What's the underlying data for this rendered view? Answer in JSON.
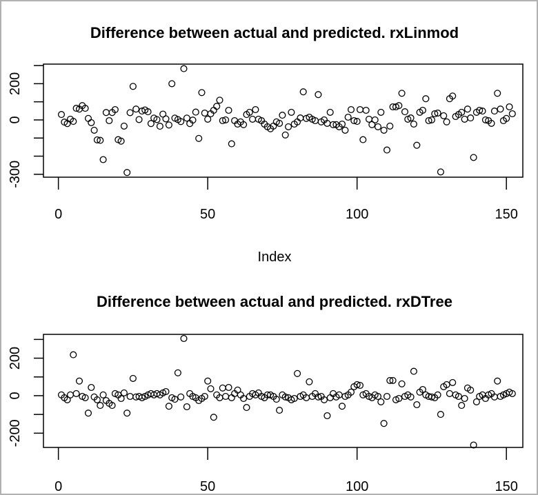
{
  "window": {
    "background": "#ffffff",
    "border_color": "#b1b1b1",
    "axis_color": "#000000",
    "point_color": "#000000"
  },
  "chart_data": [
    {
      "type": "scatter",
      "title": "Difference between actual and predicted. rxLinmod",
      "xlabel": "Index",
      "ylabel": "",
      "marker": "open-circle",
      "grid": false,
      "legend": "none",
      "x_is_index": true,
      "xlim": [
        -5,
        155.5
      ],
      "ylim": [
        -316,
        308
      ],
      "xticks": [
        0,
        50,
        100,
        150
      ],
      "xtick_labels": [
        "0",
        "50",
        "100",
        "150"
      ],
      "yticks": [
        300,
        200,
        100,
        0,
        -100,
        -200,
        -300
      ],
      "ytick_labels": [
        "",
        "200",
        "",
        "0",
        "",
        "",
        "-300"
      ],
      "values": [
        30,
        -12,
        -20,
        4,
        -8,
        64,
        60,
        79,
        64,
        8,
        -15,
        -57,
        -110,
        -113,
        -219,
        41,
        -4,
        41,
        57,
        -109,
        -117,
        -34,
        -290,
        40,
        185,
        60,
        2,
        49,
        55,
        45,
        -20,
        10,
        2,
        -35,
        32,
        6,
        -28,
        200,
        10,
        2,
        -9,
        283,
        10,
        -20,
        -1,
        43,
        -102,
        151,
        38,
        4,
        34,
        53,
        75,
        109,
        -4,
        0,
        53,
        -132,
        -4,
        -23,
        -11,
        -26,
        30,
        42,
        4,
        57,
        4,
        -4,
        -23,
        -38,
        -49,
        -34,
        -11,
        -19,
        26,
        -83,
        -38,
        42,
        -23,
        -11,
        11,
        155,
        8,
        15,
        4,
        -4,
        140,
        -11,
        0,
        -19,
        42,
        -26,
        -26,
        -38,
        -23,
        -57,
        15,
        57,
        -4,
        -8,
        57,
        -109,
        53,
        4,
        -26,
        0,
        -38,
        42,
        -57,
        -166,
        -34,
        72,
        72,
        79,
        147,
        45,
        4,
        11,
        -23,
        -140,
        42,
        53,
        117,
        -4,
        0,
        34,
        38,
        -287,
        23,
        -11,
        117,
        132,
        19,
        30,
        42,
        4,
        60,
        11,
        -207,
        42,
        53,
        49,
        0,
        -4,
        -19,
        49,
        147,
        60,
        -4,
        8,
        72,
        34
      ]
    },
    {
      "type": "scatter",
      "title": "Difference between actual and predicted. rxDTree",
      "xlabel": "",
      "ylabel": "",
      "marker": "open-circle",
      "grid": false,
      "legend": "none",
      "x_is_index": true,
      "xlim": [
        -5,
        155.5
      ],
      "ylim": [
        -276,
        327
      ],
      "xticks": [
        0,
        50,
        100,
        150
      ],
      "xtick_labels": [
        "0",
        "50",
        "100",
        "150"
      ],
      "yticks": [
        300,
        200,
        100,
        0,
        -100,
        -200
      ],
      "ytick_labels": [
        "",
        "200",
        "",
        "0",
        "",
        "-200"
      ],
      "values": [
        4,
        -11,
        -22,
        4,
        218,
        11,
        78,
        -4,
        -11,
        -93,
        44,
        -7,
        -22,
        -52,
        4,
        -26,
        -41,
        -52,
        11,
        4,
        -15,
        15,
        -93,
        -4,
        92,
        -7,
        -4,
        -11,
        -4,
        4,
        11,
        4,
        11,
        4,
        15,
        22,
        -56,
        -11,
        -19,
        122,
        -7,
        305,
        -59,
        11,
        -4,
        -11,
        -26,
        -15,
        -4,
        78,
        37,
        -115,
        4,
        -11,
        41,
        -4,
        44,
        -11,
        11,
        30,
        4,
        -15,
        -63,
        -4,
        11,
        4,
        15,
        -4,
        -11,
        4,
        4,
        -4,
        -19,
        -78,
        4,
        -7,
        -11,
        -22,
        -15,
        118,
        -4,
        4,
        -11,
        74,
        -4,
        11,
        -7,
        -4,
        -22,
        -107,
        -11,
        11,
        -7,
        4,
        -56,
        -4,
        4,
        19,
        48,
        59,
        55,
        4,
        11,
        -4,
        -11,
        4,
        -4,
        -33,
        -148,
        -4,
        81,
        81,
        -22,
        -15,
        63,
        -4,
        4,
        -7,
        130,
        -48,
        19,
        33,
        4,
        -4,
        -7,
        -11,
        4,
        -100,
        48,
        59,
        11,
        70,
        4,
        -4,
        -52,
        -15,
        41,
        30,
        -263,
        -33,
        -4,
        4,
        -15,
        4,
        11,
        -7,
        78,
        -4,
        4,
        11,
        19,
        11
      ]
    }
  ]
}
